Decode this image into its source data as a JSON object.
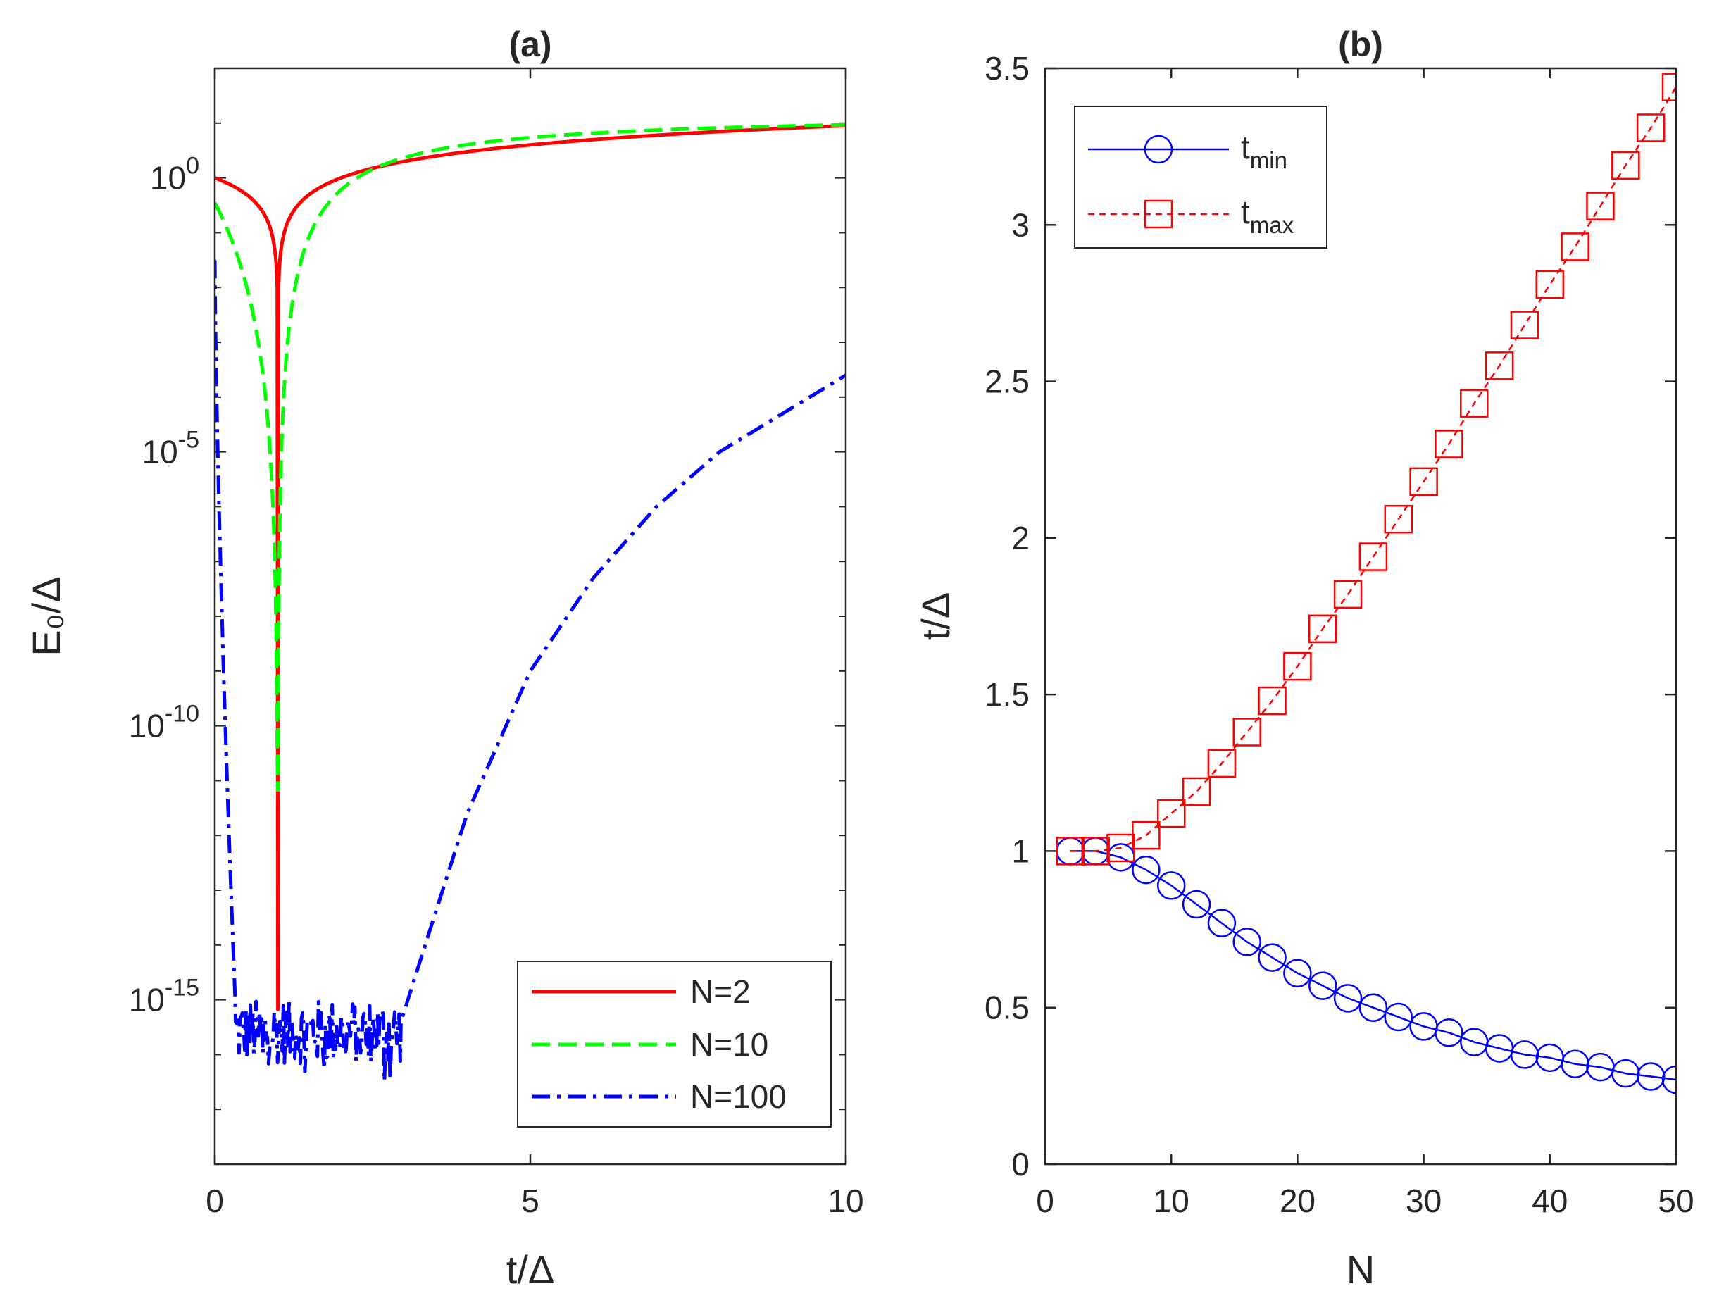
{
  "chart_data": [
    {
      "type": "line",
      "panel": "a",
      "title": "(a)",
      "xlabel": "t/Δ",
      "ylabel": "E₀/Δ",
      "yscale": "log",
      "xlim": [
        0,
        10
      ],
      "ylim_log10": [
        -18,
        2
      ],
      "xticks": [
        0,
        5,
        10
      ],
      "xtick_labels": [
        "0",
        "5",
        "10"
      ],
      "yticks_log10": [
        -15,
        -10,
        -5,
        0
      ],
      "ytick_labels": [
        {
          "base": "10",
          "exp": "-15"
        },
        {
          "base": "10",
          "exp": "-10"
        },
        {
          "base": "10",
          "exp": "-5"
        },
        {
          "base": "10",
          "exp": "0"
        }
      ],
      "legend_position": "bottom-right",
      "series": [
        {
          "name": "N=2",
          "color": "#ff0000",
          "style": "solid",
          "model": "n2",
          "t_dip": 1.0,
          "noise_floor_log10": -15.5
        },
        {
          "name": "N=10",
          "color": "#00ff00",
          "style": "dashed",
          "model": "n10",
          "t_dip": 1.0,
          "dip_min_log10": -11.2
        },
        {
          "name": "N=100",
          "color": "#0000ff",
          "style": "dashdot",
          "model": "n100",
          "t_start": 0.0,
          "y_start_log10": -1.5,
          "noise_t_range": [
            0.33,
            2.95
          ],
          "noise_band_log10": [
            -16.8,
            -15.0
          ],
          "curve_points": [
            [
              2.95,
              -15.4
            ],
            [
              3.5,
              -13.4
            ],
            [
              4.0,
              -11.6
            ],
            [
              5.0,
              -9.0
            ],
            [
              6.0,
              -7.3
            ],
            [
              7.0,
              -6.0
            ],
            [
              8.0,
              -5.0
            ],
            [
              9.0,
              -4.3
            ],
            [
              10.0,
              -3.6
            ]
          ]
        }
      ]
    },
    {
      "type": "line",
      "panel": "b",
      "title": "(b)",
      "xlabel": "N",
      "ylabel": "t/Δ",
      "xlim": [
        0,
        50
      ],
      "ylim": [
        0,
        3.5
      ],
      "xticks": [
        0,
        10,
        20,
        30,
        40,
        50
      ],
      "xtick_labels": [
        "0",
        "10",
        "20",
        "30",
        "40",
        "50"
      ],
      "yticks": [
        0,
        0.5,
        1,
        1.5,
        2,
        2.5,
        3,
        3.5
      ],
      "ytick_labels": [
        "0",
        "0.5",
        "1",
        "1.5",
        "2",
        "2.5",
        "3",
        "3.5"
      ],
      "legend_position": "top-left",
      "x": [
        2,
        4,
        6,
        8,
        10,
        12,
        14,
        16,
        18,
        20,
        22,
        24,
        26,
        28,
        30,
        32,
        34,
        36,
        38,
        40,
        42,
        44,
        46,
        48,
        50
      ],
      "series": [
        {
          "name": "t",
          "subscript": "min",
          "color": "#0000ff",
          "style": "solid",
          "marker": "circle",
          "values": [
            1.0,
            1.0,
            0.98,
            0.94,
            0.89,
            0.83,
            0.77,
            0.71,
            0.66,
            0.61,
            0.57,
            0.53,
            0.5,
            0.47,
            0.44,
            0.42,
            0.39,
            0.37,
            0.35,
            0.34,
            0.32,
            0.31,
            0.29,
            0.28,
            0.27
          ]
        },
        {
          "name": "t",
          "subscript": "max",
          "color": "#ff0000",
          "style": "dashed",
          "marker": "square",
          "values": [
            1.0,
            1.0,
            1.01,
            1.05,
            1.12,
            1.19,
            1.28,
            1.38,
            1.48,
            1.59,
            1.71,
            1.82,
            1.94,
            2.06,
            2.18,
            2.3,
            2.43,
            2.55,
            2.68,
            2.81,
            2.93,
            3.06,
            3.19,
            3.31,
            3.44
          ]
        }
      ]
    }
  ]
}
